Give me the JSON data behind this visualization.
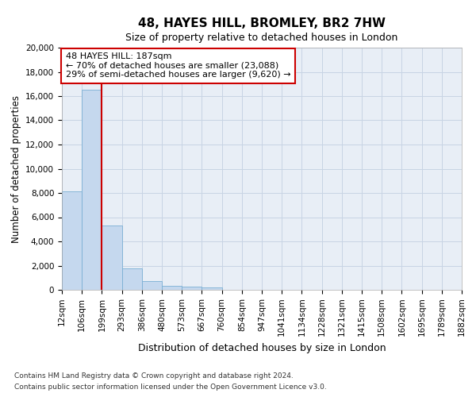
{
  "title": "48, HAYES HILL, BROMLEY, BR2 7HW",
  "subtitle": "Size of property relative to detached houses in London",
  "xlabel": "Distribution of detached houses by size in London",
  "ylabel": "Number of detached properties",
  "bin_labels": [
    "12sqm",
    "106sqm",
    "199sqm",
    "293sqm",
    "386sqm",
    "480sqm",
    "573sqm",
    "667sqm",
    "760sqm",
    "854sqm",
    "947sqm",
    "1041sqm",
    "1134sqm",
    "1228sqm",
    "1321sqm",
    "1415sqm",
    "1508sqm",
    "1602sqm",
    "1695sqm",
    "1789sqm",
    "1882sqm"
  ],
  "bar_heights": [
    8100,
    16500,
    5300,
    1750,
    750,
    320,
    230,
    210,
    0,
    0,
    0,
    0,
    0,
    0,
    0,
    0,
    0,
    0,
    0,
    0
  ],
  "bar_color": "#c5d8ee",
  "bar_edge_color": "#7aafd4",
  "grid_color": "#c8d4e4",
  "background_color": "#e8eef6",
  "vline_x": 2.0,
  "vline_color": "#cc0000",
  "annotation_text": "48 HAYES HILL: 187sqm\n← 70% of detached houses are smaller (23,088)\n29% of semi-detached houses are larger (9,620) →",
  "annotation_box_color": "#ffffff",
  "annotation_box_edge": "#cc0000",
  "ylim": [
    0,
    20000
  ],
  "yticks": [
    0,
    2000,
    4000,
    6000,
    8000,
    10000,
    12000,
    14000,
    16000,
    18000,
    20000
  ],
  "footnote1": "Contains HM Land Registry data © Crown copyright and database right 2024.",
  "footnote2": "Contains public sector information licensed under the Open Government Licence v3.0.",
  "num_bins": 20,
  "title_fontsize": 11,
  "subtitle_fontsize": 9,
  "ylabel_fontsize": 8.5,
  "xlabel_fontsize": 9,
  "tick_fontsize": 7.5,
  "annotation_fontsize": 8,
  "footnote_fontsize": 6.5
}
